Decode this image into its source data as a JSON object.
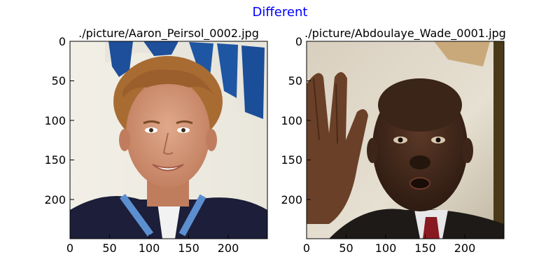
{
  "figure": {
    "title": "Different",
    "title_color": "#0000ff"
  },
  "panels": [
    {
      "title": "./picture/Aaron_Peirsol_0002.jpg",
      "description_icon": "photo-of-young-man-with-curly-hair",
      "x_ticks": [
        "0",
        "50",
        "100",
        "150",
        "200"
      ],
      "y_ticks": [
        "0",
        "50",
        "100",
        "150",
        "200"
      ]
    },
    {
      "title": "./picture/Abdoulaye_Wade_0001.jpg",
      "description_icon": "photo-of-older-man-raising-hand",
      "x_ticks": [
        "0",
        "50",
        "100",
        "150",
        "200"
      ],
      "y_ticks": [
        "0",
        "50",
        "100",
        "150",
        "200"
      ]
    }
  ]
}
